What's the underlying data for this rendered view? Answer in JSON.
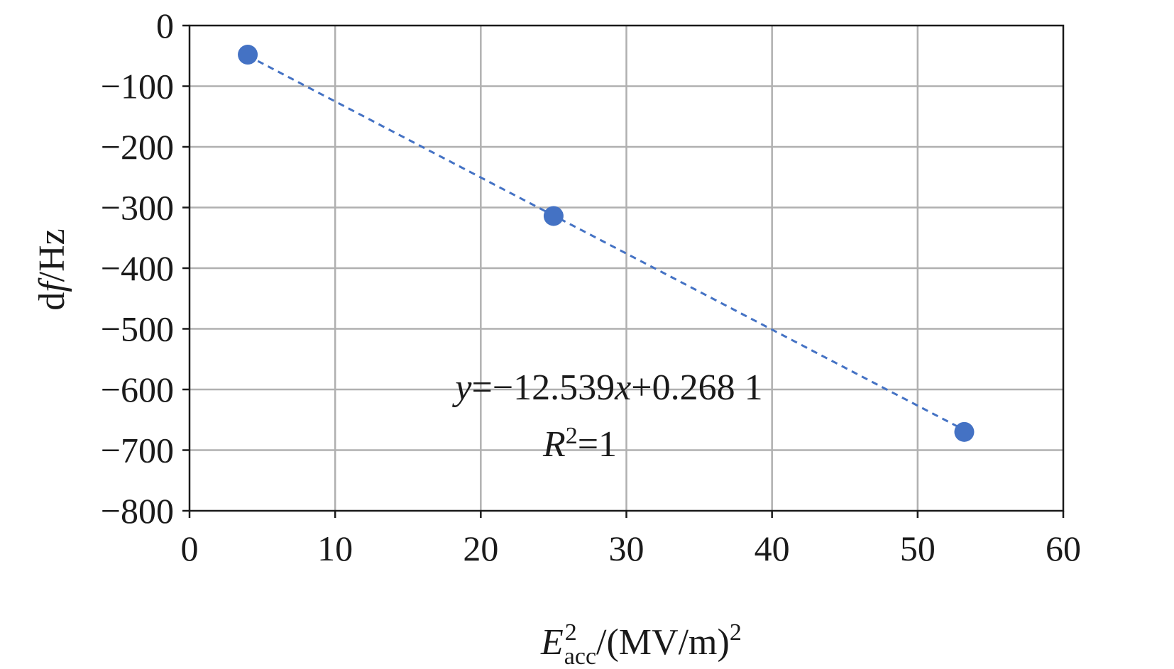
{
  "chart_data": {
    "type": "scatter",
    "title": "",
    "xlabel": {
      "base": "E",
      "superscript": "2",
      "subscript": "acc",
      "rest": "/(MV/m)",
      "rest_superscript": "2"
    },
    "ylabel": {
      "prefix": "d",
      "italic": "f",
      "rest": "/Hz"
    },
    "xlim": [
      0,
      60
    ],
    "ylim": [
      -800,
      0
    ],
    "xticks": [
      0,
      10,
      20,
      30,
      40,
      50,
      60
    ],
    "yticks": [
      0,
      -100,
      -200,
      -300,
      -400,
      -500,
      -600,
      -700,
      -800
    ],
    "xtick_labels": [
      "0",
      "10",
      "20",
      "30",
      "40",
      "50",
      "60"
    ],
    "ytick_labels": [
      "0",
      "−100",
      "−200",
      "−300",
      "−400",
      "−500",
      "−600",
      "−700",
      "−800"
    ],
    "grid": true,
    "series": [
      {
        "x": [
          4,
          25,
          53.2
        ],
        "y": [
          -48,
          -314,
          -670
        ],
        "color": "#4472c4"
      }
    ],
    "trendline": {
      "slope": -12.539,
      "intercept": 0.2681,
      "style": "dashed",
      "color": "#4472c4",
      "x_range": [
        4,
        53.2
      ]
    },
    "annotation": {
      "equation": {
        "y_var": "y",
        "middle": "=−12.539",
        "x_var": "x",
        "tail": "+0.268 1"
      },
      "r2": {
        "var": "R",
        "superscript": "2",
        "tail": "=1"
      }
    },
    "colors": {
      "grid": "#b0b0b0",
      "axis": "#1a1a1a",
      "marker": "#4472c4"
    }
  }
}
